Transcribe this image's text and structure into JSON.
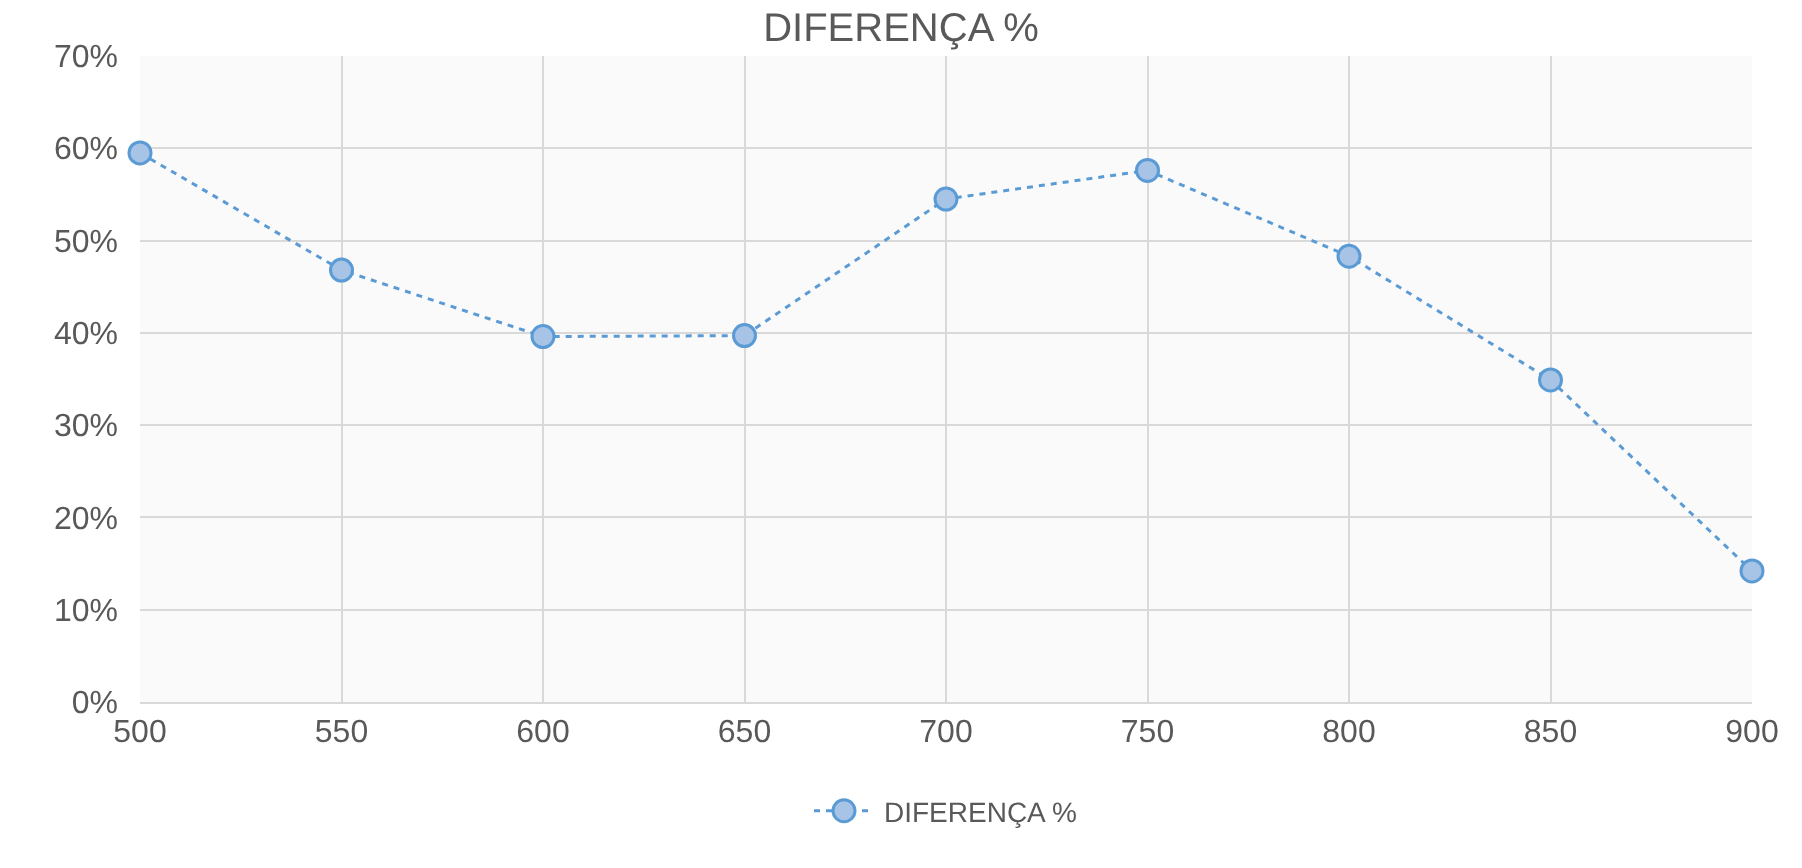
{
  "chart_data": {
    "type": "line",
    "title": "DIFERENÇA %",
    "x": [
      500,
      550,
      600,
      650,
      700,
      750,
      800,
      850,
      900
    ],
    "series": [
      {
        "name": "DIFERENÇA %",
        "color": "#5b9bd5",
        "values": [
          59.5,
          46.8,
          39.6,
          39.7,
          54.5,
          57.6,
          48.3,
          34.9,
          14.2
        ]
      }
    ],
    "xlim": [
      500,
      900
    ],
    "xticks": [
      500,
      550,
      600,
      650,
      700,
      750,
      800,
      850,
      900
    ],
    "ylim": [
      0,
      70
    ],
    "yticks": [
      {
        "value": 0,
        "label": "0%"
      },
      {
        "value": 10,
        "label": "10%"
      },
      {
        "value": 20,
        "label": "20%"
      },
      {
        "value": 30,
        "label": "30%"
      },
      {
        "value": 40,
        "label": "40%"
      },
      {
        "value": 50,
        "label": "50%"
      },
      {
        "value": 60,
        "label": "60%"
      },
      {
        "value": 70,
        "label": "70%"
      }
    ],
    "grid": true,
    "legend": "bottom",
    "marker": "circle",
    "line_style": "dotted"
  }
}
